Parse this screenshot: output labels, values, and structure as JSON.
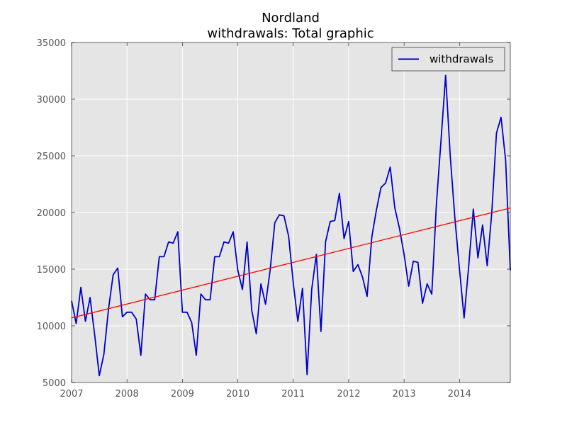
{
  "chart_data": {
    "type": "line",
    "title": "Nordland",
    "subtitle": "withdrawals: Total graphic",
    "xlabel": "",
    "ylabel": "",
    "xlim": [
      2007.0,
      2014.917
    ],
    "ylim": [
      5000,
      35000
    ],
    "x_ticks": [
      "2007",
      "2008",
      "2009",
      "2010",
      "2011",
      "2012",
      "2013",
      "2014"
    ],
    "y_ticks": [
      "5000",
      "10000",
      "15000",
      "20000",
      "25000",
      "30000",
      "35000"
    ],
    "grid": true,
    "legend_position": "top-right",
    "series": [
      {
        "name": "withdrawals",
        "color": "#0000cc",
        "x": [
          2007.0,
          2007.083,
          2007.167,
          2007.25,
          2007.333,
          2007.417,
          2007.5,
          2007.583,
          2007.667,
          2007.75,
          2007.833,
          2007.917,
          2008.0,
          2008.083,
          2008.167,
          2008.25,
          2008.333,
          2008.417,
          2008.5,
          2008.583,
          2008.667,
          2008.75,
          2008.833,
          2008.917,
          2009.0,
          2009.083,
          2009.167,
          2009.25,
          2009.333,
          2009.417,
          2009.5,
          2009.583,
          2009.667,
          2009.75,
          2009.833,
          2009.917,
          2010.0,
          2010.083,
          2010.167,
          2010.25,
          2010.333,
          2010.417,
          2010.5,
          2010.583,
          2010.667,
          2010.75,
          2010.833,
          2010.917,
          2011.0,
          2011.083,
          2011.167,
          2011.25,
          2011.333,
          2011.417,
          2011.5,
          2011.583,
          2011.667,
          2011.75,
          2011.833,
          2011.917,
          2012.0,
          2012.083,
          2012.167,
          2012.25,
          2012.333,
          2012.417,
          2012.5,
          2012.583,
          2012.667,
          2012.75,
          2012.833,
          2012.917,
          2013.0,
          2013.083,
          2013.167,
          2013.25,
          2013.333,
          2013.417,
          2013.5,
          2013.583,
          2013.667,
          2013.75,
          2013.833,
          2013.917,
          2014.0,
          2014.083,
          2014.167,
          2014.25,
          2014.333,
          2014.417,
          2014.5,
          2014.583,
          2014.667,
          2014.75,
          2014.833,
          2014.917
        ],
        "values": [
          12200,
          10200,
          13400,
          10400,
          12500,
          9200,
          5600,
          7500,
          11500,
          14500,
          15100,
          10800,
          11200,
          11200,
          10600,
          7400,
          12800,
          12300,
          12300,
          16100,
          16100,
          17400,
          17300,
          18300,
          11200,
          11200,
          10300,
          7400,
          12800,
          12300,
          12300,
          16100,
          16100,
          17400,
          17300,
          18300,
          14900,
          13200,
          17400,
          11400,
          9300,
          13700,
          11900,
          14900,
          19100,
          19800,
          19700,
          17900,
          13800,
          10400,
          13300,
          5700,
          13200,
          16300,
          9500,
          17400,
          19200,
          19300,
          21700,
          17700,
          19200,
          14800,
          15400,
          14300,
          12600,
          17800,
          20200,
          22200,
          22600,
          24000,
          20400,
          18600,
          16300,
          13500,
          15700,
          15600,
          12000,
          13700,
          12800,
          20700,
          26400,
          32100,
          25000,
          19500,
          15000,
          10700,
          15300,
          20300,
          16000,
          18900,
          15300,
          20000,
          27000,
          28400,
          24600,
          14900
        ]
      },
      {
        "name": "",
        "color": "#ff0000",
        "x": [
          2007.0,
          2014.917
        ],
        "values": [
          10700,
          20400
        ]
      }
    ]
  }
}
